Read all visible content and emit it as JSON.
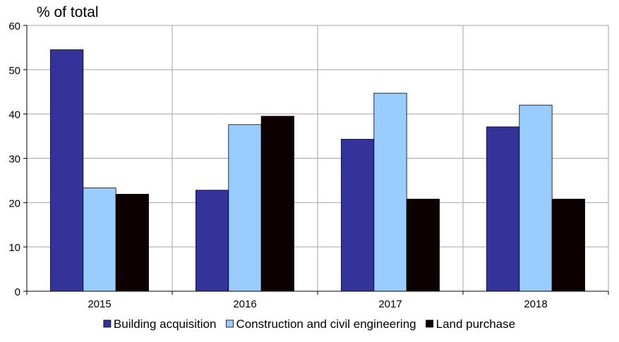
{
  "chart_data": {
    "type": "bar",
    "title": "",
    "ylabel": "% of total",
    "xlabel": "",
    "categories": [
      "2015",
      "2016",
      "2017",
      "2018"
    ],
    "series": [
      {
        "name": "Building acquisition",
        "values": [
          54.5,
          22.8,
          34.3,
          37.1
        ],
        "color": "#333399"
      },
      {
        "name": "Construction and civil engineering",
        "values": [
          23.3,
          37.6,
          44.7,
          42.0
        ],
        "color": "#99ccff"
      },
      {
        "name": "Land purchase",
        "values": [
          21.9,
          39.5,
          20.8,
          20.8
        ],
        "color": "#0d0000"
      }
    ],
    "ylim": [
      0,
      60
    ],
    "yticks": [
      "0",
      "10",
      "20",
      "30",
      "40",
      "50",
      "60"
    ],
    "grid": true,
    "legend_position": "bottom"
  }
}
